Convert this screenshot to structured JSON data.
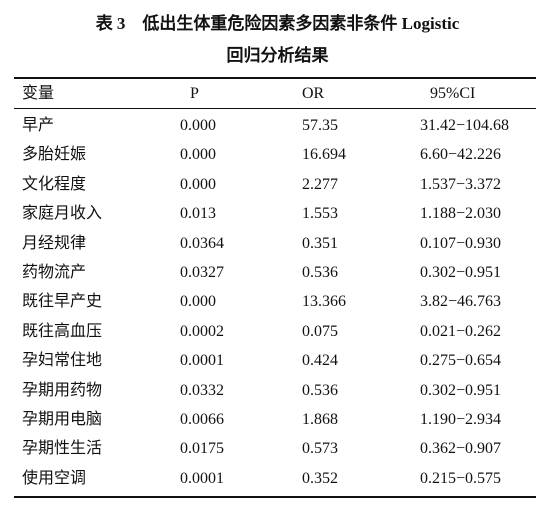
{
  "table": {
    "title_lines": [
      "表 3　低出生体重危险因素多因素非条件 Logistic",
      "回归分析结果"
    ],
    "header": [
      "变量",
      "P",
      "OR",
      "95%CI"
    ],
    "rows": [
      [
        "早产",
        "0.000",
        "57.35",
        "31.42−104.68"
      ],
      [
        "多胎妊娠",
        "0.000",
        "16.694",
        "6.60−42.226"
      ],
      [
        "文化程度",
        "0.000",
        "2.277",
        "1.537−3.372"
      ],
      [
        "家庭月收入",
        "0.013",
        "1.553",
        "1.188−2.030"
      ],
      [
        "月经规律",
        "0.0364",
        "0.351",
        "0.107−0.930"
      ],
      [
        "药物流产",
        "0.0327",
        "0.536",
        "0.302−0.951"
      ],
      [
        "既往早产史",
        "0.000",
        "13.366",
        "3.82−46.763"
      ],
      [
        "既往高血压",
        "0.0002",
        "0.075",
        "0.021−0.262"
      ],
      [
        "孕妇常住地",
        "0.0001",
        "0.424",
        "0.275−0.654"
      ],
      [
        "孕期用药物",
        "0.0332",
        "0.536",
        "0.302−0.951"
      ],
      [
        "孕期用电脑",
        "0.0066",
        "1.868",
        "1.190−2.934"
      ],
      [
        "孕期性生活",
        "0.0175",
        "0.573",
        "0.362−0.907"
      ],
      [
        "使用空调",
        "0.0001",
        "0.352",
        "0.215−0.575"
      ]
    ]
  }
}
